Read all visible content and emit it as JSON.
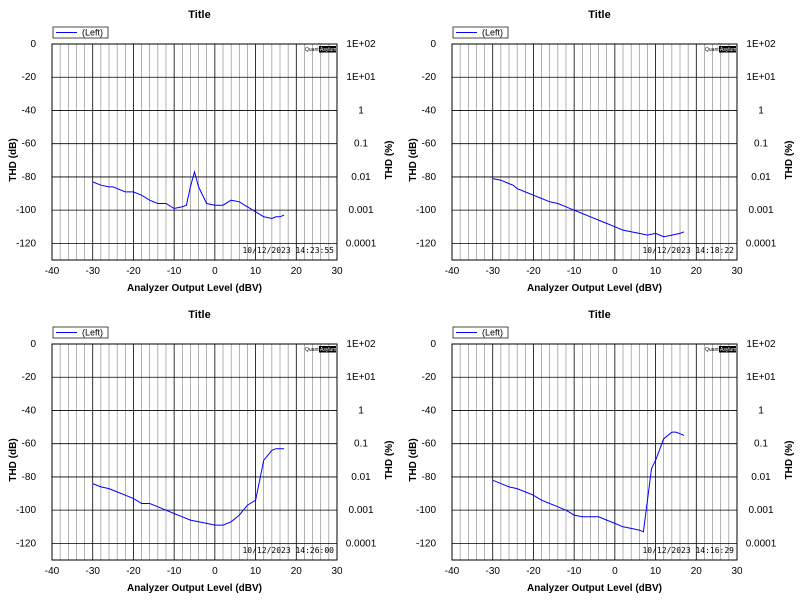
{
  "colors": {
    "series": "#0000ff",
    "grid_major": "#000000",
    "grid_minor": "#808080"
  },
  "logo_text": [
    "Quant",
    "Asylum"
  ],
  "chart_data": [
    {
      "type": "line",
      "title": "Title",
      "xlabel": "Analyzer Output Level (dBV)",
      "ylabel": "THD (dB)",
      "y2label": "THD (%)",
      "xlim": [
        -40,
        30
      ],
      "ylim": [
        -130,
        0
      ],
      "xticks": [
        "-40",
        "-30",
        "-20",
        "-10",
        "0",
        "10",
        "20",
        "30"
      ],
      "yticks": [
        "0",
        "-20",
        "-40",
        "-60",
        "-80",
        "-100",
        "-120"
      ],
      "y2ticks": [
        "1E+02",
        "1E+01",
        "1",
        "0.1",
        "0.01",
        "0.001",
        "0.0001"
      ],
      "legend": "(Left)",
      "timestamp": "10/12/2023  14:23:55",
      "grid": true,
      "series": [
        {
          "x": [
            -30,
            -28,
            -26,
            -25,
            -24,
            -22,
            -20,
            -18,
            -16,
            -14,
            -12,
            -10,
            -8,
            -7,
            -6,
            -5,
            -4,
            -2,
            0,
            2,
            4,
            6,
            8,
            10,
            12,
            14,
            15,
            16,
            17
          ],
          "y": [
            -83,
            -85,
            -86,
            -86,
            -87,
            -89,
            -89,
            -91,
            -94,
            -96,
            -96,
            -99,
            -98,
            -97,
            -86,
            -77,
            -86,
            -96,
            -97,
            -97,
            -94,
            -95,
            -98,
            -101,
            -104,
            -105,
            -104,
            -104,
            -103
          ]
        }
      ]
    },
    {
      "type": "line",
      "title": "Title",
      "xlabel": "Analyzer Output Level (dBV)",
      "ylabel": "THD (dB)",
      "y2label": "THD (%)",
      "xlim": [
        -40,
        30
      ],
      "ylim": [
        -130,
        0
      ],
      "xticks": [
        "-40",
        "-30",
        "-20",
        "-10",
        "0",
        "10",
        "20",
        "30"
      ],
      "yticks": [
        "0",
        "-20",
        "-40",
        "-60",
        "-80",
        "-100",
        "-120"
      ],
      "y2ticks": [
        "1E+02",
        "1E+01",
        "1",
        "0.1",
        "0.01",
        "0.001",
        "0.0001"
      ],
      "legend": "(Left)",
      "timestamp": "10/12/2023  14:18:22",
      "grid": true,
      "series": [
        {
          "x": [
            -30,
            -28,
            -26,
            -25,
            -24,
            -22,
            -20,
            -18,
            -16,
            -14,
            -12,
            -10,
            -8,
            -6,
            -4,
            -2,
            0,
            2,
            4,
            6,
            8,
            10,
            12,
            14,
            16,
            17
          ],
          "y": [
            -81,
            -82,
            -84,
            -85,
            -87,
            -89,
            -91,
            -93,
            -95,
            -96,
            -98,
            -100,
            -102,
            -104,
            -106,
            -108,
            -110,
            -112,
            -113,
            -114,
            -115,
            -114,
            -116,
            -115,
            -114,
            -113
          ]
        }
      ]
    },
    {
      "type": "line",
      "title": "Title",
      "xlabel": "Analyzer Output Level (dBV)",
      "ylabel": "THD (dB)",
      "y2label": "THD (%)",
      "xlim": [
        -40,
        30
      ],
      "ylim": [
        -130,
        0
      ],
      "xticks": [
        "-40",
        "-30",
        "-20",
        "-10",
        "0",
        "10",
        "20",
        "30"
      ],
      "yticks": [
        "0",
        "-20",
        "-40",
        "-60",
        "-80",
        "-100",
        "-120"
      ],
      "y2ticks": [
        "1E+02",
        "1E+01",
        "1",
        "0.1",
        "0.01",
        "0.001",
        "0.0001"
      ],
      "legend": "(Left)",
      "timestamp": "10/12/2023  14:26:00",
      "grid": true,
      "series": [
        {
          "x": [
            -30,
            -28,
            -26,
            -24,
            -22,
            -20,
            -18,
            -16,
            -14,
            -12,
            -10,
            -8,
            -6,
            -4,
            -2,
            0,
            2,
            4,
            6,
            8,
            10,
            12,
            14,
            15,
            16,
            17
          ],
          "y": [
            -84,
            -86,
            -87,
            -89,
            -91,
            -93,
            -96,
            -96,
            -98,
            -100,
            -102,
            -104,
            -106,
            -107,
            -108,
            -109,
            -109,
            -107,
            -103,
            -97,
            -94,
            -70,
            -64,
            -63,
            -63,
            -63
          ]
        }
      ]
    },
    {
      "type": "line",
      "title": "Title",
      "xlabel": "Analyzer Output Level (dBV)",
      "ylabel": "THD (dB)",
      "y2label": "THD (%)",
      "xlim": [
        -40,
        30
      ],
      "ylim": [
        -130,
        0
      ],
      "xticks": [
        "-40",
        "-30",
        "-20",
        "-10",
        "0",
        "10",
        "20",
        "30"
      ],
      "yticks": [
        "0",
        "-20",
        "-40",
        "-60",
        "-80",
        "-100",
        "-120"
      ],
      "y2ticks": [
        "1E+02",
        "1E+01",
        "1",
        "0.1",
        "0.01",
        "0.001",
        "0.0001"
      ],
      "legend": "(Left)",
      "timestamp": "10/12/2023  14:16:29",
      "grid": true,
      "series": [
        {
          "x": [
            -30,
            -28,
            -26,
            -24,
            -22,
            -20,
            -18,
            -16,
            -14,
            -12,
            -10,
            -8,
            -6,
            -4,
            -2,
            0,
            2,
            4,
            6,
            7,
            9,
            10,
            12,
            14,
            15,
            16,
            17
          ],
          "y": [
            -82,
            -84,
            -86,
            -87,
            -89,
            -91,
            -94,
            -96,
            -98,
            -100,
            -103,
            -104,
            -104,
            -104,
            -106,
            -108,
            -110,
            -111,
            -112,
            -113,
            -75,
            -70,
            -57,
            -53,
            -53,
            -54,
            -55
          ]
        }
      ]
    }
  ]
}
